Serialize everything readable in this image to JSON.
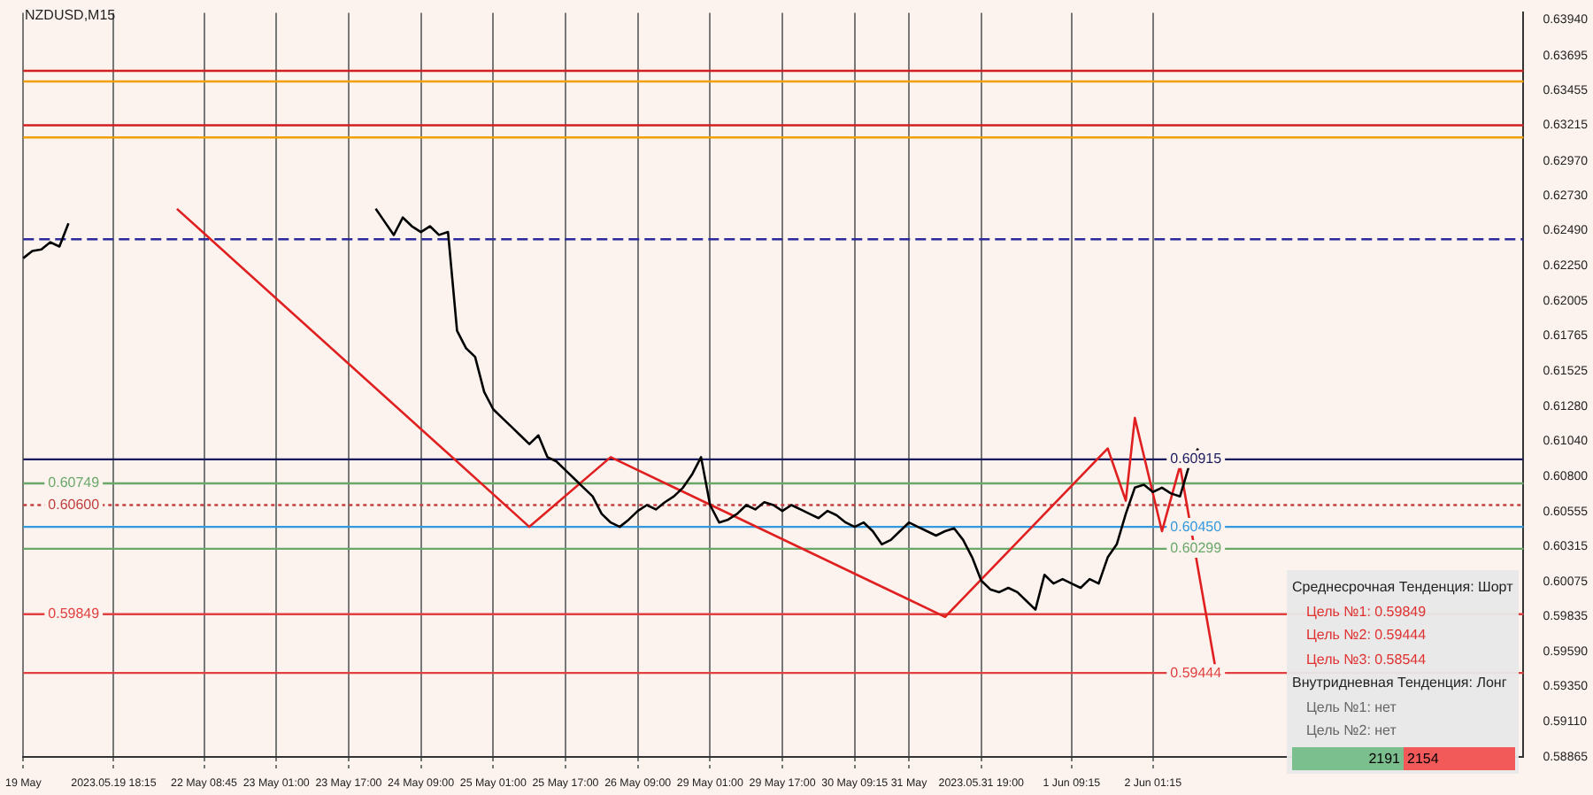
{
  "chart_data": {
    "type": "line",
    "title": "NZDUSD,M15",
    "categories": [
      "19 May",
      null,
      null,
      null,
      null,
      null,
      null,
      null,
      null,
      null,
      "2023.05.19 18:15",
      null,
      null,
      null,
      null,
      null,
      null,
      null,
      null,
      null,
      "22 May 08:45",
      null,
      null,
      null,
      null,
      null,
      null,
      null,
      "23 May 01:00",
      null,
      null,
      null,
      null,
      null,
      null,
      null,
      "23 May 17:00",
      null,
      null,
      null,
      null,
      null,
      null,
      null,
      "24 May 09:00",
      null,
      null,
      null,
      null,
      null,
      null,
      null,
      "25 May 01:00",
      null,
      null,
      null,
      null,
      null,
      null,
      null,
      "25 May 17:00",
      null,
      null,
      null,
      null,
      null,
      null,
      null,
      "26 May 09:00",
      null,
      null,
      null,
      null,
      null,
      null,
      null,
      "29 May 01:00",
      null,
      null,
      null,
      null,
      null,
      null,
      null,
      "29 May 17:00",
      null,
      null,
      null,
      null,
      null,
      null,
      null,
      "30 May 09:15",
      null,
      null,
      null,
      null,
      null,
      "31 May",
      null,
      null,
      null,
      null,
      null,
      null,
      null,
      "2023.05.31 19:00",
      null,
      null,
      null,
      null,
      null,
      null,
      null,
      null,
      null,
      "1 Jun 09:15",
      null,
      null,
      null,
      null,
      null,
      null,
      null,
      null,
      "2 Jun 01:15",
      null,
      null,
      null,
      null,
      null,
      null,
      null,
      null,
      null,
      null,
      null,
      null,
      null,
      null,
      null,
      null,
      null,
      null,
      null,
      null,
      null,
      null,
      null,
      null,
      null,
      null,
      null,
      null,
      null,
      null,
      null,
      null,
      null,
      null,
      null,
      null,
      null,
      null,
      null,
      null,
      null
    ],
    "series": [
      {
        "color": "#000000",
        "values": [
          0.623,
          0.6235,
          0.6236,
          0.6241,
          0.6238,
          0.6254,
          null,
          null,
          null,
          null,
          null,
          null,
          null,
          null,
          null,
          null,
          null,
          null,
          null,
          null,
          null,
          null,
          null,
          null,
          null,
          null,
          null,
          null,
          null,
          null,
          null,
          null,
          null,
          null,
          null,
          null,
          null,
          null,
          null,
          0.6264,
          0.6255,
          0.6246,
          0.6258,
          0.6252,
          0.6248,
          0.6252,
          0.6246,
          0.6248,
          0.618,
          0.6168,
          0.6162,
          0.6138,
          0.6126,
          0.612,
          0.6114,
          0.6108,
          0.6102,
          0.6108,
          0.6093,
          0.609,
          0.6084,
          0.6078,
          0.6072,
          0.6066,
          0.6054,
          0.6048,
          0.6045,
          0.605,
          0.6056,
          0.606,
          0.6057,
          0.6062,
          0.6066,
          0.6072,
          0.6081,
          0.6093,
          0.606,
          0.6048,
          0.605,
          0.6054,
          0.606,
          0.6057,
          0.6062,
          0.606,
          0.6056,
          0.606,
          0.6057,
          0.6054,
          0.6051,
          0.6056,
          0.6053,
          0.6048,
          0.6045,
          0.6048,
          0.6042,
          0.6033,
          0.6036,
          0.6042,
          0.6048,
          0.6045,
          0.6042,
          0.6039,
          0.6042,
          0.6044,
          0.6036,
          0.6024,
          0.6008,
          0.6002,
          0.6,
          0.6003,
          0.6,
          0.5994,
          0.5988,
          0.6012,
          0.6006,
          0.6009,
          0.6006,
          0.6003,
          0.6009,
          0.6006,
          0.6024,
          0.6033,
          0.6054,
          0.6072,
          0.6074,
          0.6069,
          0.6072,
          0.6068,
          0.6066,
          0.6087,
          0.6099,
          null,
          null,
          null,
          null,
          null,
          null,
          null,
          null,
          null,
          null,
          null,
          null,
          null,
          null,
          null,
          null,
          null,
          null,
          null,
          null,
          null,
          null,
          null,
          null,
          null,
          null,
          null,
          null,
          null,
          null,
          null,
          null,
          null,
          null,
          null,
          null
        ]
      },
      {
        "color": "#e02020",
        "values": [
          null,
          null,
          null,
          null,
          null,
          null,
          null,
          null,
          null,
          null,
          null,
          null,
          null,
          null,
          null,
          null,
          null,
          0.6264,
          null,
          null,
          null,
          null,
          null,
          null,
          null,
          null,
          null,
          null,
          null,
          null,
          null,
          null,
          null,
          null,
          null,
          null,
          null,
          null,
          null,
          null,
          null,
          null,
          null,
          null,
          null,
          null,
          null,
          null,
          null,
          null,
          null,
          null,
          null,
          null,
          null,
          null,
          0.6045,
          null,
          null,
          null,
          null,
          null,
          null,
          null,
          null,
          0.6093,
          null,
          null,
          null,
          null,
          null,
          null,
          null,
          null,
          null,
          null,
          null,
          null,
          null,
          null,
          null,
          null,
          null,
          null,
          null,
          null,
          null,
          null,
          null,
          null,
          null,
          null,
          null,
          null,
          null,
          null,
          null,
          null,
          null,
          null,
          null,
          null,
          0.5983,
          null,
          null,
          null,
          null,
          null,
          null,
          null,
          null,
          null,
          null,
          null,
          null,
          null,
          null,
          null,
          null,
          null,
          0.6099,
          null,
          0.6063,
          0.612,
          null,
          null,
          0.6042,
          null,
          0.6087,
          null,
          null,
          null,
          0.5945,
          null,
          null,
          null,
          null,
          null,
          null,
          null,
          null,
          null,
          null,
          null,
          null,
          null,
          null,
          null,
          null,
          null,
          null,
          null,
          null,
          null,
          null,
          null,
          null,
          null,
          null,
          null,
          null,
          null,
          null,
          null,
          null,
          null,
          null
        ]
      }
    ],
    "ylim": [
      0.58865,
      0.6399
    ],
    "yticks": [
      {
        "value": 0.58865,
        "label": "0.58865"
      },
      {
        "value": 0.5911,
        "label": "0.59110"
      },
      {
        "value": 0.5935,
        "label": "0.59350"
      },
      {
        "value": 0.5959,
        "label": "0.59590"
      },
      {
        "value": 0.59835,
        "label": "0.59835"
      },
      {
        "value": 0.60075,
        "label": "0.60075"
      },
      {
        "value": 0.60315,
        "label": "0.60315"
      },
      {
        "value": 0.60555,
        "label": "0.60555"
      },
      {
        "value": 0.608,
        "label": "0.60800"
      },
      {
        "value": 0.6104,
        "label": "0.61040"
      },
      {
        "value": 0.6128,
        "label": "0.61280"
      },
      {
        "value": 0.61525,
        "label": "0.61525"
      },
      {
        "value": 0.61765,
        "label": "0.61765"
      },
      {
        "value": 0.62005,
        "label": "0.62005"
      },
      {
        "value": 0.6225,
        "label": "0.62250"
      },
      {
        "value": 0.6249,
        "label": "0.62490"
      },
      {
        "value": 0.6273,
        "label": "0.62730"
      },
      {
        "value": 0.6297,
        "label": "0.62970"
      },
      {
        "value": 0.63215,
        "label": "0.63215"
      },
      {
        "value": 0.63455,
        "label": "0.63455"
      },
      {
        "value": 0.63695,
        "label": "0.63695"
      },
      {
        "value": 0.6394,
        "label": "0.63940"
      }
    ],
    "ref_lines": [
      {
        "axis": "y",
        "value": 0.60915,
        "label": "0.60915",
        "color": "#1a1a5e"
      },
      {
        "axis": "y",
        "value": 0.60749,
        "label": "0.60749",
        "color": "#6aa86a"
      },
      {
        "axis": "y",
        "value": 0.60299,
        "label": "0.60299",
        "color": "#6aa86a"
      },
      {
        "axis": "y",
        "value": 0.59849,
        "label": "0.59849",
        "color": "#e04040"
      },
      {
        "axis": "y",
        "value": 0.59444,
        "label": "0.59444",
        "color": "#e04040"
      },
      {
        "axis": "y",
        "value": 0.606,
        "label": "0.60600",
        "color": "#c04040",
        "line_style": "dotted"
      },
      {
        "axis": "y",
        "value": 0.6045,
        "label": "0.60450",
        "color": "#3399dd"
      },
      {
        "axis": "y",
        "value": 0.6243,
        "color": "#2a2a9a",
        "line_style": "dashed"
      },
      {
        "axis": "y",
        "value": 0.6359,
        "color": "#d02020"
      },
      {
        "axis": "y",
        "value": 0.63517,
        "color": "#f0a000"
      },
      {
        "axis": "y",
        "value": 0.63215,
        "color": "#d02020"
      },
      {
        "axis": "y",
        "value": 0.63131,
        "color": "#f0a000"
      }
    ],
    "annotations": [
      "Среднесрочная Тенденция: Шорт",
      "Цель №1: 0.59849",
      "Цель №2: 0.59444",
      "Цель №3: 0.58544",
      "Внутридневная Тенденция: Лонг",
      "Цель №1: нет",
      "Цель №2: нет",
      "2191",
      "2154"
    ],
    "grid": "x",
    "legend": false,
    "marker": "none",
    "line_style": "solid"
  }
}
